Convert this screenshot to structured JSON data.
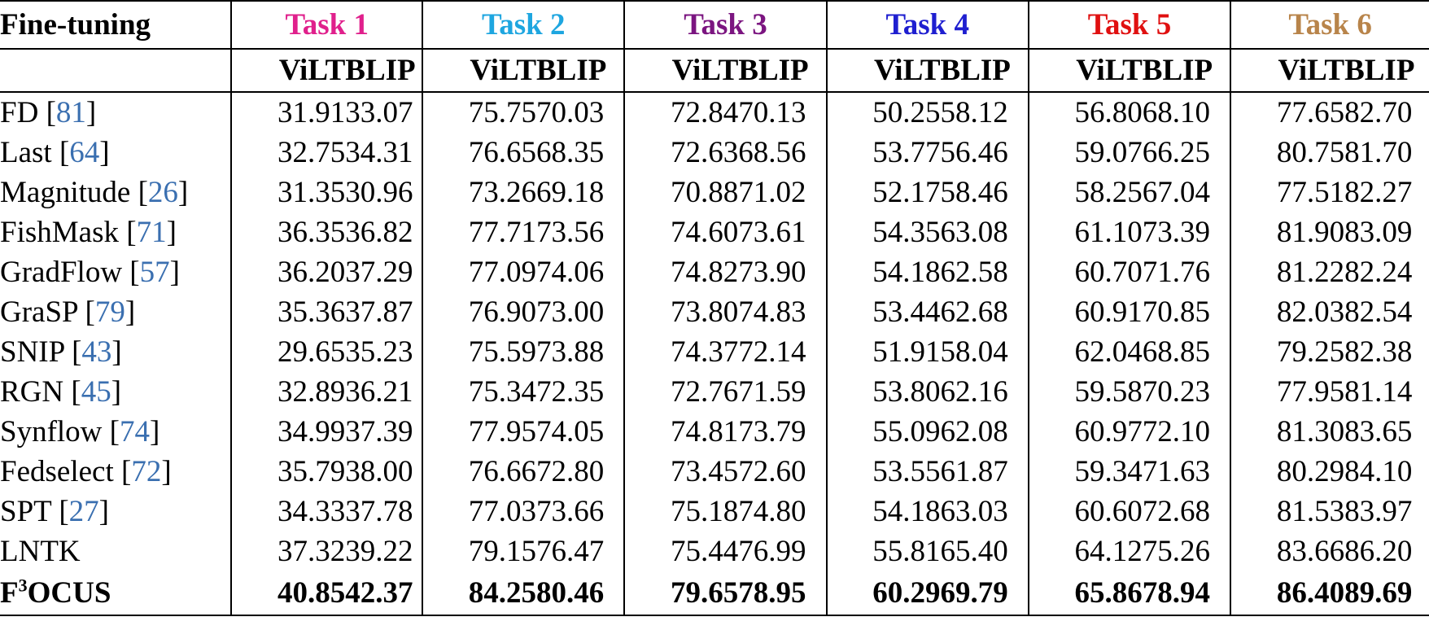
{
  "header": {
    "method_label": "Fine-tuning",
    "tasks": [
      {
        "label": "Task 1",
        "color": "#e0208c"
      },
      {
        "label": "Task 2",
        "color": "#1ea6e0"
      },
      {
        "label": "Task 3",
        "color": "#7b1580"
      },
      {
        "label": "Task 4",
        "color": "#1f1fd0"
      },
      {
        "label": "Task 5",
        "color": "#e01010"
      },
      {
        "label": "Task 6",
        "color": "#b8844a"
      }
    ],
    "sub_labels": [
      "ViLT",
      "BLIP"
    ]
  },
  "cite_color": "#3a6fb0",
  "rows": [
    {
      "name": "FD",
      "cite": "81",
      "values": [
        "31.91",
        "33.07",
        "75.75",
        "70.03",
        "72.84",
        "70.13",
        "50.25",
        "58.12",
        "56.80",
        "68.10",
        "77.65",
        "82.70"
      ]
    },
    {
      "name": "Last",
      "cite": "64",
      "values": [
        "32.75",
        "34.31",
        "76.65",
        "68.35",
        "72.63",
        "68.56",
        "53.77",
        "56.46",
        "59.07",
        "66.25",
        "80.75",
        "81.70"
      ]
    },
    {
      "name": "Magnitude",
      "cite": "26",
      "values": [
        "31.35",
        "30.96",
        "73.26",
        "69.18",
        "70.88",
        "71.02",
        "52.17",
        "58.46",
        "58.25",
        "67.04",
        "77.51",
        "82.27"
      ]
    },
    {
      "name": "FishMask",
      "cite": "71",
      "values": [
        "36.35",
        "36.82",
        "77.71",
        "73.56",
        "74.60",
        "73.61",
        "54.35",
        "63.08",
        "61.10",
        "73.39",
        "81.90",
        "83.09"
      ]
    },
    {
      "name": "GradFlow",
      "cite": "57",
      "values": [
        "36.20",
        "37.29",
        "77.09",
        "74.06",
        "74.82",
        "73.90",
        "54.18",
        "62.58",
        "60.70",
        "71.76",
        "81.22",
        "82.24"
      ]
    },
    {
      "name": "GraSP",
      "cite": "79",
      "values": [
        "35.36",
        "37.87",
        "76.90",
        "73.00",
        "73.80",
        "74.83",
        "53.44",
        "62.68",
        "60.91",
        "70.85",
        "82.03",
        "82.54"
      ]
    },
    {
      "name": "SNIP",
      "cite": "43",
      "values": [
        "29.65",
        "35.23",
        "75.59",
        "73.88",
        "74.37",
        "72.14",
        "51.91",
        "58.04",
        "62.04",
        "68.85",
        "79.25",
        "82.38"
      ]
    },
    {
      "name": "RGN",
      "cite": "45",
      "values": [
        "32.89",
        "36.21",
        "75.34",
        "72.35",
        "72.76",
        "71.59",
        "53.80",
        "62.16",
        "59.58",
        "70.23",
        "77.95",
        "81.14"
      ]
    },
    {
      "name": "Synflow",
      "cite": "74",
      "values": [
        "34.99",
        "37.39",
        "77.95",
        "74.05",
        "74.81",
        "73.79",
        "55.09",
        "62.08",
        "60.97",
        "72.10",
        "81.30",
        "83.65"
      ]
    },
    {
      "name": "Fedselect",
      "cite": "72",
      "values": [
        "35.79",
        "38.00",
        "76.66",
        "72.80",
        "73.45",
        "72.60",
        "53.55",
        "61.87",
        "59.34",
        "71.63",
        "80.29",
        "84.10"
      ]
    },
    {
      "name": "SPT",
      "cite": "27",
      "values": [
        "34.33",
        "37.78",
        "77.03",
        "73.66",
        "75.18",
        "74.80",
        "54.18",
        "63.03",
        "60.60",
        "72.68",
        "81.53",
        "83.97"
      ]
    },
    {
      "name": "LNTK",
      "cite": "",
      "values": [
        "37.32",
        "39.22",
        "79.15",
        "76.47",
        "75.44",
        "76.99",
        "55.81",
        "65.40",
        "64.12",
        "75.26",
        "83.66",
        "86.20"
      ]
    },
    {
      "name": "F",
      "sup": "3",
      "name_rest": "OCUS",
      "cite": "",
      "bold": true,
      "values": [
        "40.85",
        "42.37",
        "84.25",
        "80.46",
        "79.65",
        "78.95",
        "60.29",
        "69.79",
        "65.86",
        "78.94",
        "86.40",
        "89.69"
      ]
    }
  ]
}
